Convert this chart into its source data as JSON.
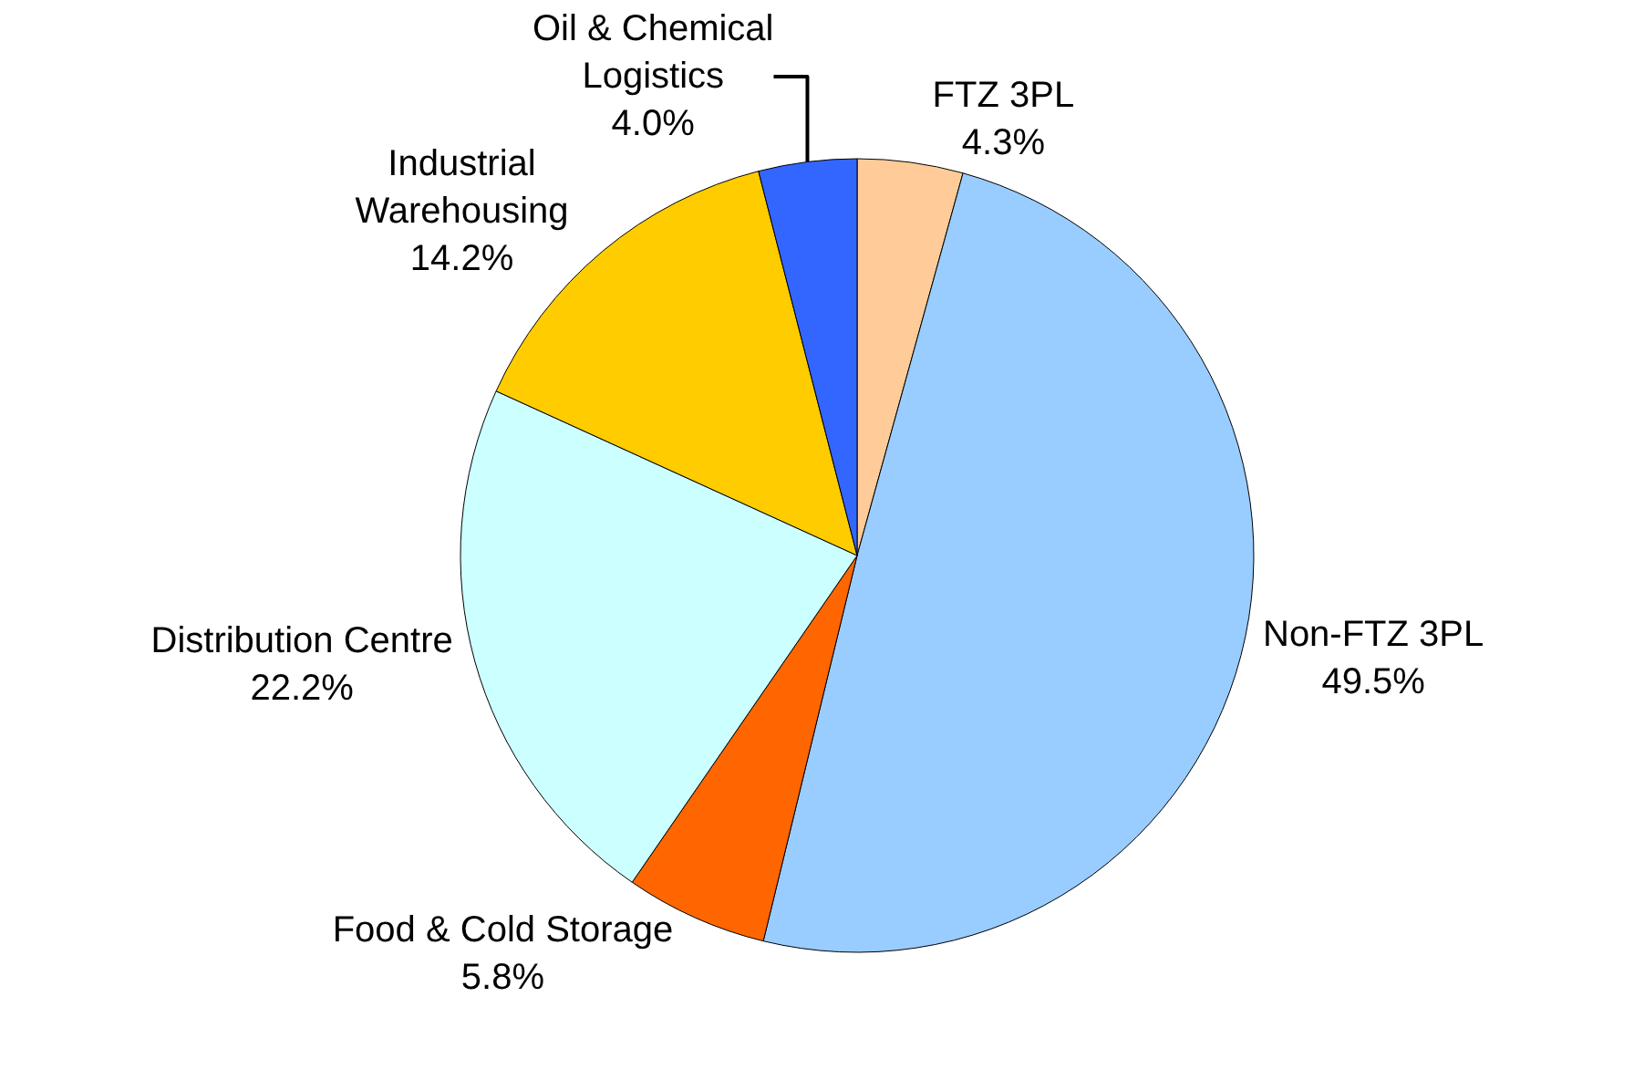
{
  "chart_data": {
    "type": "pie",
    "categories": [
      "FTZ 3PL",
      "Non-FTZ 3PL",
      "Food & Cold Storage",
      "Distribution Centre",
      "Industrial Warehousing",
      "Oil & Chemical Logistics"
    ],
    "values": [
      4.3,
      49.5,
      5.8,
      22.2,
      14.2,
      4.0
    ],
    "value_labels": [
      "4.3%",
      "49.5%",
      "5.8%",
      "22.2%",
      "14.2%",
      "4.0%"
    ],
    "colors": [
      "#ffcc99",
      "#99ccff",
      "#ff6600",
      "#ccffff",
      "#ffcc00",
      "#3366ff"
    ],
    "legend": false
  }
}
